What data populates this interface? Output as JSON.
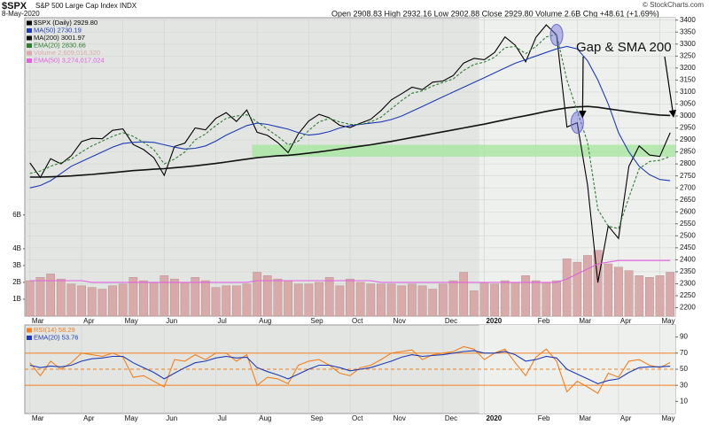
{
  "chart_data": [
    {
      "type": "line",
      "title": "$SPX",
      "subtitle": "S&P 500 Large Cap Index INDX",
      "date": "8-May-2020",
      "quote": "Open 2908.83 High 2932.16 Low 2902.88 Close 2929.80 Volume 2.6B Chg +48.61 (+1.69%)",
      "credit": "© StockCharts.com",
      "annotation": "Gap & SMA 200",
      "categories": [
        "Mar",
        null,
        null,
        null,
        null,
        "Apr",
        null,
        null,
        null,
        "May",
        null,
        null,
        null,
        "Jun",
        null,
        null,
        null,
        null,
        "Jul",
        null,
        null,
        null,
        "Aug",
        null,
        null,
        null,
        null,
        "Sep",
        null,
        null,
        null,
        "Oct",
        null,
        null,
        null,
        "Nov",
        null,
        null,
        null,
        null,
        "Dec",
        null,
        null,
        null,
        "2020",
        null,
        null,
        null,
        null,
        "Feb",
        null,
        null,
        null,
        "Mar",
        null,
        null,
        null,
        "Apr",
        null,
        null,
        null,
        "May",
        null
      ],
      "ylim": [
        2165,
        3410
      ],
      "yticks": [
        2200,
        2250,
        2300,
        2350,
        2400,
        2450,
        2500,
        2550,
        2600,
        2650,
        2700,
        2750,
        2800,
        2850,
        2900,
        2950,
        3000,
        3050,
        3100,
        3150,
        3200,
        3250,
        3300,
        3350,
        3400
      ],
      "y2lim": [
        0,
        17700000000
      ],
      "y2ticks": [
        {
          "value": 1000000000,
          "label": "1B"
        },
        {
          "value": 2000000000,
          "label": "2B"
        },
        {
          "value": 3000000000,
          "label": "3B"
        },
        {
          "value": 4000000000,
          "label": "4B"
        },
        {
          "value": 6000000000,
          "label": "6B"
        }
      ],
      "grid": true,
      "support_band": {
        "from": 2830,
        "to": 2880,
        "color": "#a8e6a0"
      },
      "series": [
        {
          "name": "$SPX (Daily) 2929.80",
          "color": "#000000",
          "values": [
            2804,
            2743,
            2822,
            2800,
            2834,
            2893,
            2907,
            2905,
            2940,
            2946,
            2881,
            2860,
            2826,
            2752,
            2873,
            2887,
            2950,
            2942,
            2990,
            3014,
            2977,
            3025,
            2932,
            2919,
            2889,
            2847,
            2926,
            2979,
            3007,
            2992,
            2961,
            2952,
            2970,
            2986,
            3023,
            3067,
            3093,
            3120,
            3110,
            3141,
            3146,
            3169,
            3221,
            3240,
            3235,
            3265,
            3330,
            3295,
            3226,
            3328,
            3380,
            3338,
            2954,
            2972,
            2711,
            2305,
            2541,
            2489,
            2790,
            2875,
            2837,
            2831,
            2930
          ]
        },
        {
          "name": "MA(50) 2730.19",
          "color": "#1f3bb3",
          "values": [
            2700,
            2710,
            2730,
            2760,
            2790,
            2810,
            2830,
            2850,
            2870,
            2885,
            2890,
            2892,
            2890,
            2880,
            2870,
            2862,
            2865,
            2875,
            2895,
            2920,
            2940,
            2960,
            2970,
            2965,
            2955,
            2945,
            2930,
            2920,
            2925,
            2935,
            2950,
            2960,
            2965,
            2970,
            2975,
            2985,
            3000,
            3020,
            3040,
            3060,
            3080,
            3100,
            3120,
            3140,
            3160,
            3180,
            3200,
            3220,
            3235,
            3250,
            3265,
            3280,
            3290,
            3280,
            3230,
            3150,
            3050,
            2930,
            2850,
            2790,
            2755,
            2735,
            2730
          ]
        },
        {
          "name": "MA(200) 3001.97",
          "color": "#111111",
          "width": 1.6,
          "values": [
            2745,
            2745,
            2746,
            2748,
            2750,
            2753,
            2756,
            2760,
            2764,
            2768,
            2772,
            2775,
            2778,
            2780,
            2784,
            2788,
            2792,
            2797,
            2802,
            2808,
            2814,
            2820,
            2826,
            2830,
            2834,
            2836,
            2840,
            2845,
            2850,
            2856,
            2862,
            2868,
            2874,
            2880,
            2887,
            2894,
            2902,
            2910,
            2918,
            2926,
            2934,
            2942,
            2950,
            2958,
            2966,
            2975,
            2984,
            2993,
            3001,
            3010,
            3019,
            3027,
            3034,
            3038,
            3040,
            3036,
            3030,
            3024,
            3018,
            3013,
            3008,
            3004,
            3002
          ]
        },
        {
          "name": "EMA(20) 2830.66",
          "color": "#2e7d32",
          "dash": true,
          "values": [
            2760,
            2770,
            2790,
            2805,
            2820,
            2850,
            2875,
            2895,
            2915,
            2930,
            2915,
            2890,
            2860,
            2800,
            2820,
            2850,
            2900,
            2925,
            2960,
            2990,
            3000,
            3005,
            2975,
            2945,
            2915,
            2880,
            2895,
            2940,
            2975,
            2990,
            2975,
            2965,
            2965,
            2975,
            2995,
            3030,
            3065,
            3095,
            3105,
            3125,
            3140,
            3155,
            3190,
            3215,
            3225,
            3245,
            3285,
            3290,
            3260,
            3290,
            3330,
            3340,
            3150,
            3020,
            2890,
            2610,
            2540,
            2530,
            2660,
            2780,
            2810,
            2815,
            2831
          ]
        },
        {
          "name": "Volume 2,609,016,320",
          "color": "#d8aaaa",
          "kind": "bar",
          "axis": "y2",
          "values": [
            2100000000.0,
            2300000000.0,
            2500000000.0,
            2200000000.0,
            1900000000.0,
            1800000000.0,
            1700000000.0,
            1600000000.0,
            1800000000.0,
            1900000000.0,
            2300000000.0,
            2100000000.0,
            2000000000.0,
            2400000000.0,
            2200000000.0,
            2000000000.0,
            2300000000.0,
            2100000000.0,
            1700000000.0,
            1800000000.0,
            1800000000.0,
            1900000000.0,
            2600000000.0,
            2400000000.0,
            2200000000.0,
            2100000000.0,
            1900000000.0,
            1900000000.0,
            2000000000.0,
            2300000000.0,
            1800000000.0,
            2200000000.0,
            2000000000.0,
            1900000000.0,
            1900000000.0,
            1900000000.0,
            1800000000.0,
            1900000000.0,
            1800000000.0,
            1600000000.0,
            1900000000.0,
            2100000000.0,
            2600000000.0,
            1500000000.0,
            2000000000.0,
            1900000000.0,
            2100000000.0,
            2000000000.0,
            2400000000.0,
            2100000000.0,
            2000000000.0,
            2100000000.0,
            3400000000.0,
            3200000000.0,
            3600000000.0,
            3900000000.0,
            3100000000.0,
            2900000000.0,
            2700000000.0,
            2400000000.0,
            2300000000.0,
            2400000000.0,
            2600000000.0
          ]
        },
        {
          "name": "EMA(50) 3,274,017,024",
          "color": "#e060e0",
          "axis": "y2",
          "values": [
            2100000000.0,
            2100000000.0,
            2100000000.0,
            2100000000.0,
            2100000000.0,
            2100000000.0,
            2000000000.0,
            2000000000.0,
            2000000000.0,
            2000000000.0,
            2000000000.0,
            2000000000.0,
            2000000000.0,
            2000000000.0,
            2000000000.0,
            2000000000.0,
            2000000000.0,
            2000000000.0,
            2000000000.0,
            2000000000.0,
            2000000000.0,
            2000000000.0,
            2100000000.0,
            2100000000.0,
            2100000000.0,
            2100000000.0,
            2100000000.0,
            2100000000.0,
            2100000000.0,
            2100000000.0,
            2100000000.0,
            2100000000.0,
            2100000000.0,
            2100000000.0,
            2000000000.0,
            2000000000.0,
            2000000000.0,
            2000000000.0,
            2000000000.0,
            2000000000.0,
            2000000000.0,
            2000000000.0,
            2000000000.0,
            2000000000.0,
            2000000000.0,
            2000000000.0,
            2000000000.0,
            2000000000.0,
            2000000000.0,
            2000000000.0,
            2000000000.0,
            2000000000.0,
            2200000000.0,
            2500000000.0,
            2800000000.0,
            3100000000.0,
            3200000000.0,
            3300000000.0,
            3300000000.0,
            3300000000.0,
            3300000000.0,
            3300000000.0,
            3300000000.0
          ]
        }
      ]
    },
    {
      "type": "line",
      "categories": [
        "Mar",
        null,
        null,
        null,
        null,
        "Apr",
        null,
        null,
        null,
        "May",
        null,
        null,
        null,
        "Jun",
        null,
        null,
        null,
        null,
        "Jul",
        null,
        null,
        null,
        "Aug",
        null,
        null,
        null,
        null,
        "Sep",
        null,
        null,
        null,
        "Oct",
        null,
        null,
        null,
        "Nov",
        null,
        null,
        null,
        null,
        "Dec",
        null,
        null,
        null,
        "2020",
        null,
        null,
        null,
        null,
        "Feb",
        null,
        null,
        null,
        "Mar",
        null,
        null,
        null,
        "Apr",
        null,
        null,
        null,
        "May",
        null
      ],
      "ylim": [
        -5,
        105
      ],
      "yticks": [
        10,
        30,
        50,
        70,
        90
      ],
      "reference_lines": [
        70,
        50,
        30
      ],
      "reference_color": "#f08020",
      "series": [
        {
          "name": "RSI(14) 58.29",
          "color": "#f08020",
          "values": [
            58,
            42,
            60,
            50,
            58,
            70,
            68,
            66,
            70,
            65,
            40,
            42,
            35,
            28,
            62,
            60,
            68,
            62,
            70,
            70,
            60,
            68,
            30,
            40,
            38,
            32,
            55,
            60,
            62,
            55,
            45,
            42,
            52,
            55,
            62,
            70,
            72,
            74,
            62,
            68,
            70,
            72,
            78,
            75,
            62,
            70,
            75,
            58,
            42,
            65,
            75,
            60,
            22,
            35,
            28,
            20,
            45,
            40,
            60,
            62,
            55,
            52,
            58.29
          ]
        },
        {
          "name": "EMA(20) 53.76",
          "color": "#1f3bb3",
          "values": [
            55,
            52,
            54,
            53,
            55,
            60,
            63,
            64,
            66,
            66,
            58,
            52,
            46,
            38,
            45,
            52,
            58,
            60,
            64,
            66,
            64,
            65,
            52,
            47,
            43,
            38,
            44,
            50,
            55,
            55,
            52,
            48,
            50,
            52,
            56,
            60,
            65,
            68,
            66,
            67,
            68,
            70,
            72,
            73,
            70,
            70,
            72,
            68,
            60,
            62,
            66,
            64,
            50,
            44,
            38,
            32,
            36,
            38,
            46,
            52,
            53,
            53,
            53.76
          ]
        }
      ]
    }
  ]
}
